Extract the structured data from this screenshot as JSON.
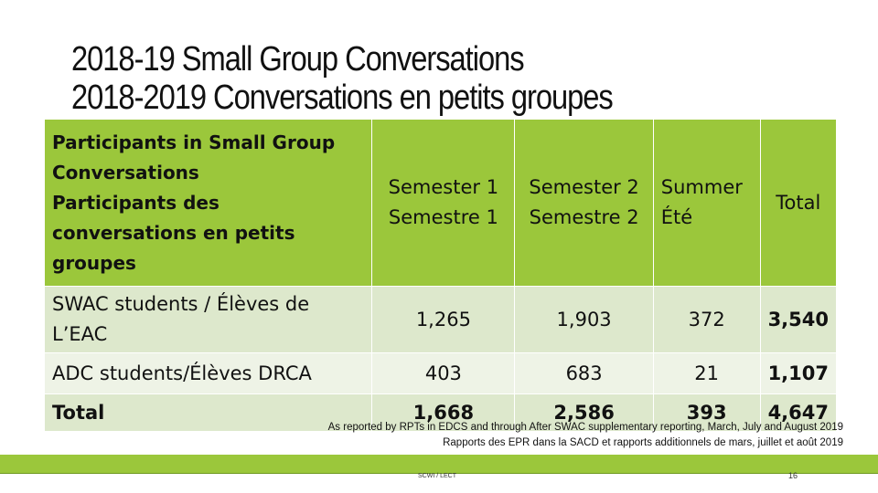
{
  "title": {
    "line1": "2018-19 Small Group Conversations",
    "line2": "2018-2019 Conversations en petits groupes"
  },
  "table": {
    "header_label": {
      "line1": "Participants in Small Group",
      "line2": "Conversations",
      "line3": "Participants des",
      "line4": "conversations en petits",
      "line5": "groupes"
    },
    "columns": [
      {
        "en": "Semester 1",
        "fr": "Semestre 1"
      },
      {
        "en": "Semester 2",
        "fr": "Semestre 2"
      },
      {
        "en": "Summer",
        "fr": "Été"
      },
      {
        "en": "Total",
        "fr": ""
      }
    ],
    "rows": [
      {
        "label_line1": "SWAC students / Élèves de",
        "label_line2": "L’EAC",
        "values": [
          "1,265",
          "1,903",
          "372",
          "3,540"
        ]
      },
      {
        "label_line1": "ADC students/Élèves DRCA",
        "label_line2": "",
        "values": [
          "403",
          "683",
          "21",
          "1,107"
        ]
      },
      {
        "label_line1": "Total",
        "label_line2": "",
        "values": [
          "1,668",
          "2,586",
          "393",
          "4,647"
        ]
      }
    ]
  },
  "note": {
    "line1": "As reported by RPTs in EDCS and through After SWAC supplementary reporting, March, July and August 2019",
    "line2": "Rapports des EPR dans la SACD et rapports additionnels de mars, juillet et août 2019"
  },
  "footer": {
    "text": "SCWI / LECT",
    "page": "16"
  },
  "colors": {
    "header_green": "#9bc73b",
    "row_light": "#dde8cc",
    "row_lighter": "#eef3e6"
  }
}
